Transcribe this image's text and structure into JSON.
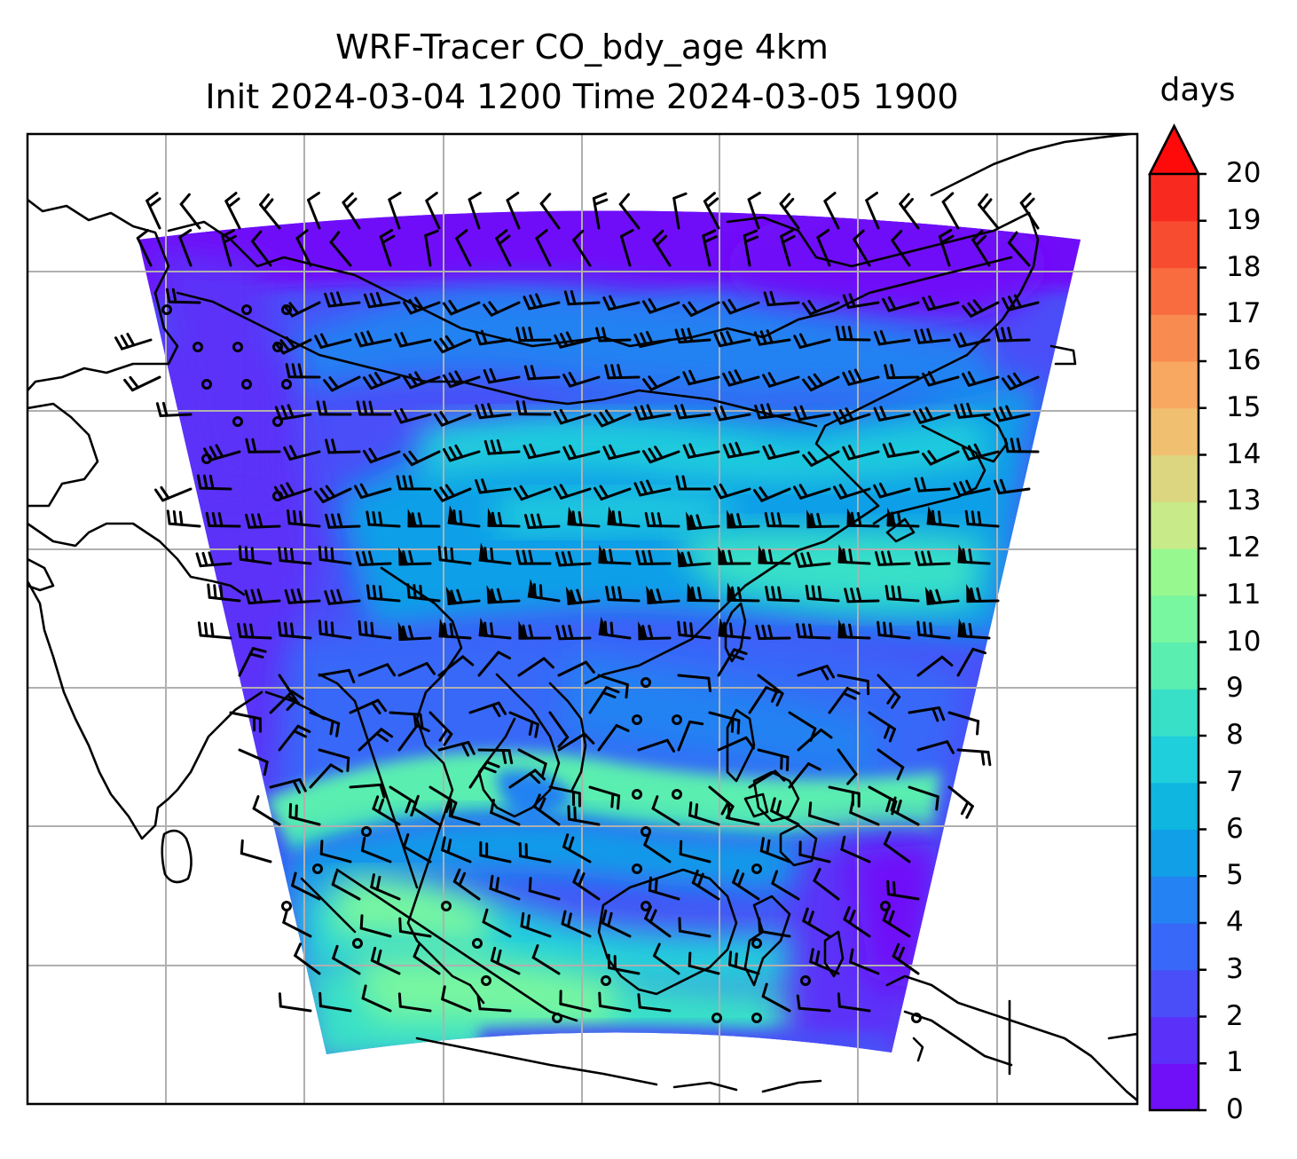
{
  "title": {
    "line1": "WRF-Tracer CO_bdy_age 4km",
    "line2": "Init 2024-03-04 1200 Time 2024-03-05 1900"
  },
  "colorbar": {
    "unit": "days",
    "ticks": [
      "0",
      "1",
      "2",
      "3",
      "4",
      "5",
      "6",
      "7",
      "8",
      "9",
      "10",
      "11",
      "12",
      "13",
      "14",
      "15",
      "16",
      "17",
      "18",
      "19",
      "20"
    ],
    "extend": "max",
    "colors": [
      "#7010f8",
      "#5b30f8",
      "#4a4ef8",
      "#3868f8",
      "#2482f2",
      "#119fe8",
      "#0eb6e0",
      "#20cfdc",
      "#38e0c8",
      "#5aeeb0",
      "#78f6a0",
      "#98f890",
      "#c8ea88",
      "#dcd680",
      "#f0c070",
      "#f8a860",
      "#f88c50",
      "#f86c40",
      "#f84c30",
      "#f82a20"
    ],
    "extend_color": "#ff0a0a"
  },
  "map": {
    "field": "CO_bdy_age",
    "age_levels_visible": [
      "purple 0-2 days",
      "blue 2-6 days",
      "cyan-green 6-10 days"
    ],
    "gridlines": true,
    "coastlines": true,
    "wind_barbs": true,
    "calm_wind_circles": true
  }
}
